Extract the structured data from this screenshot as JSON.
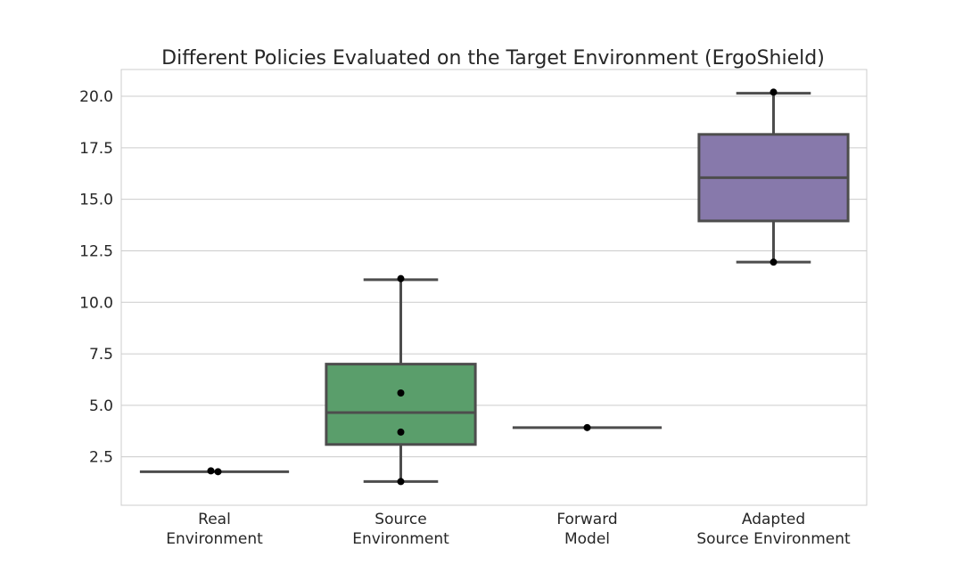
{
  "chart_data": {
    "type": "box",
    "title": "Different Policies Evaluated on the Target Environment (ErgoShield)",
    "xlabel": "",
    "ylabel": "",
    "ylim": [
      0.15,
      21.3
    ],
    "yticks": [
      2.5,
      5.0,
      7.5,
      10.0,
      12.5,
      15.0,
      17.5,
      20.0
    ],
    "ytick_labels": [
      "2.5",
      "5.0",
      "7.5",
      "10.0",
      "12.5",
      "15.0",
      "17.5",
      "20.0"
    ],
    "grid": true,
    "categories": [
      {
        "label_lines": [
          "Real",
          "Environment"
        ],
        "color": "#4c72b0",
        "whisker_low": 1.76,
        "q1": 1.76,
        "median": 1.78,
        "q3": 1.8,
        "whisker_high": 1.8,
        "points": [
          1.82,
          1.78
        ]
      },
      {
        "label_lines": [
          "Source",
          "Environment"
        ],
        "color": "#5a9e6b",
        "whisker_low": 1.3,
        "q1": 3.1,
        "median": 4.65,
        "q3": 7.0,
        "whisker_high": 11.1,
        "points": [
          11.15,
          5.6,
          3.7,
          1.3
        ]
      },
      {
        "label_lines": [
          "Forward",
          "Model"
        ],
        "color": "#c44e52",
        "whisker_low": 3.92,
        "q1": 3.92,
        "median": 3.92,
        "q3": 3.92,
        "whisker_high": 3.92,
        "points": [
          3.92
        ]
      },
      {
        "label_lines": [
          "Adapted",
          "Source Environment"
        ],
        "color": "#8779ab",
        "whisker_low": 11.95,
        "q1": 13.95,
        "median": 16.05,
        "q3": 18.15,
        "whisker_high": 20.15,
        "points": [
          20.2,
          11.95
        ]
      }
    ],
    "style": {
      "edge_color": "#4d4d4d",
      "grid_color": "#cccccc",
      "frame_color": "#cccccc",
      "point_color": "#000000"
    }
  }
}
